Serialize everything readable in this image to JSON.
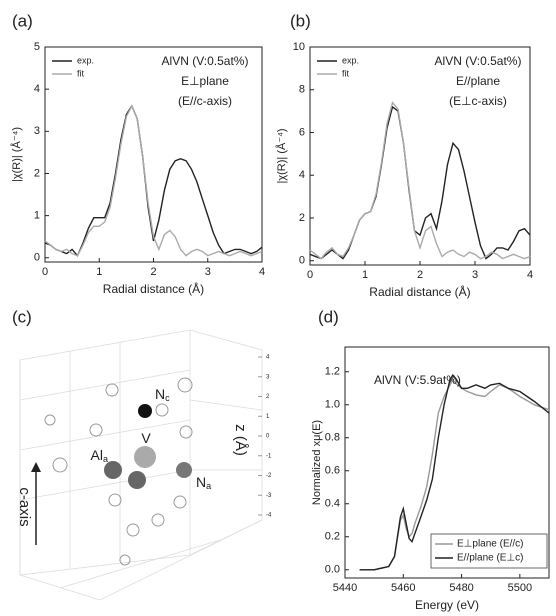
{
  "chart_data": [
    {
      "type": "line",
      "panel": "(a)",
      "xlabel": "Radial distance (Å)",
      "ylabel": "|χ(R)| (Å⁻⁴)",
      "xlim": [
        0,
        4
      ],
      "xticks": [
        0,
        1,
        2,
        3,
        4
      ],
      "ylim": [
        -0.1,
        5
      ],
      "yticks": [
        0,
        1,
        2,
        3,
        4,
        5
      ],
      "legend": "upper left",
      "annotations": [
        "AlVN (V:0.5at%)",
        "E⊥plane",
        "(E//c-axis)"
      ],
      "x": [
        0,
        0.1,
        0.2,
        0.3,
        0.4,
        0.5,
        0.6,
        0.7,
        0.8,
        0.9,
        1,
        1.1,
        1.2,
        1.3,
        1.4,
        1.5,
        1.6,
        1.7,
        1.8,
        1.9,
        2,
        2.1,
        2.2,
        2.3,
        2.4,
        2.5,
        2.6,
        2.7,
        2.8,
        2.9,
        3,
        3.1,
        3.2,
        3.3,
        3.4,
        3.5,
        3.6,
        3.7,
        3.8,
        3.9,
        4
      ],
      "series": [
        {
          "name": "exp.",
          "color": "#222222",
          "values": [
            0.35,
            0.3,
            0.2,
            0.15,
            0.1,
            0.2,
            0.05,
            0.35,
            0.7,
            0.95,
            0.95,
            0.95,
            1.3,
            2.0,
            2.8,
            3.4,
            3.6,
            3.3,
            2.4,
            1.2,
            0.4,
            0.9,
            1.6,
            2.1,
            2.3,
            2.35,
            2.3,
            2.1,
            1.8,
            1.4,
            1.0,
            0.6,
            0.3,
            0.1,
            0.15,
            0.2,
            0.2,
            0.15,
            0.1,
            0.15,
            0.25
          ]
        },
        {
          "name": "fit",
          "color": "#aaaaaa",
          "values": [
            0.4,
            0.3,
            0.2,
            0.15,
            0.2,
            0.1,
            0.05,
            0.3,
            0.6,
            0.75,
            0.75,
            0.85,
            1.2,
            1.9,
            2.7,
            3.35,
            3.6,
            3.3,
            2.4,
            1.3,
            0.5,
            0.2,
            0.55,
            0.65,
            0.5,
            0.2,
            0.05,
            0.15,
            0.2,
            0.15,
            0.05,
            0.1,
            0.15,
            0.1,
            0.05,
            0.1,
            0.15,
            0.1,
            0.05,
            0.1,
            0.15
          ]
        }
      ]
    },
    {
      "type": "line",
      "panel": "(b)",
      "xlabel": "Radial distance (Å)",
      "ylabel": "|χ(R)| (Å⁻⁴)",
      "xlim": [
        0,
        4
      ],
      "xticks": [
        0,
        1,
        2,
        3,
        4
      ],
      "ylim": [
        -0.2,
        10
      ],
      "yticks": [
        0,
        2,
        4,
        6,
        8,
        10
      ],
      "legend": "upper left",
      "annotations": [
        "AlVN (V:0.5at%)",
        "E//plane",
        "(E⊥c-axis)"
      ],
      "x": [
        0,
        0.1,
        0.2,
        0.3,
        0.4,
        0.5,
        0.6,
        0.7,
        0.8,
        0.9,
        1,
        1.1,
        1.2,
        1.3,
        1.4,
        1.5,
        1.6,
        1.7,
        1.8,
        1.9,
        2,
        2.1,
        2.2,
        2.3,
        2.4,
        2.5,
        2.6,
        2.7,
        2.8,
        2.9,
        3,
        3.1,
        3.2,
        3.3,
        3.4,
        3.5,
        3.6,
        3.7,
        3.8,
        3.9,
        4
      ],
      "series": [
        {
          "name": "exp.",
          "color": "#222222",
          "values": [
            0.3,
            0.2,
            0.1,
            0.3,
            0.5,
            0.3,
            0.1,
            0.5,
            1.2,
            1.9,
            2.2,
            2.3,
            3.0,
            4.5,
            6.2,
            7.2,
            7.0,
            5.5,
            3.3,
            1.4,
            1.2,
            2.0,
            2.2,
            1.5,
            2.8,
            4.5,
            5.5,
            5.2,
            4.2,
            3.0,
            1.8,
            0.7,
            0.1,
            0.3,
            0.6,
            0.6,
            0.5,
            0.9,
            1.4,
            1.5,
            1.2
          ]
        },
        {
          "name": "fit",
          "color": "#aaaaaa",
          "values": [
            0.5,
            0.3,
            0.1,
            0.4,
            0.6,
            0.3,
            0.2,
            0.6,
            1.2,
            1.9,
            2.2,
            2.3,
            3.1,
            4.6,
            6.4,
            7.4,
            7.1,
            5.5,
            3.4,
            1.4,
            0.6,
            1.4,
            1.6,
            0.8,
            0.2,
            0.4,
            0.5,
            0.3,
            0.2,
            0.4,
            0.3,
            0.1,
            0.2,
            0.4,
            0.3,
            0.1,
            0.2,
            0.3,
            0.2,
            0.1,
            0.2
          ]
        }
      ]
    },
    {
      "type": "atoms",
      "panel": "(c)",
      "zlabel": "z (Å)",
      "zlim": [
        -4,
        4
      ],
      "zticks": [
        4,
        3,
        2,
        1,
        0,
        -1,
        -2,
        -3,
        -4
      ],
      "axis_label": "c-axis",
      "atoms": [
        {
          "label": "N",
          "sub": "c"
        },
        {
          "label": "V"
        },
        {
          "label": "Al",
          "sub": "a"
        },
        {
          "label": "N",
          "sub": "a"
        }
      ]
    },
    {
      "type": "line",
      "panel": "(d)",
      "xlabel": "Energy (eV)",
      "ylabel": "Normalized xμ(E)",
      "xlim": [
        5440,
        5510
      ],
      "xticks": [
        5440,
        5460,
        5480,
        5500
      ],
      "ylim": [
        -0.05,
        1.35
      ],
      "yticks": [
        {
          "value": 0,
          "label": "0.0"
        },
        0.2,
        0.4,
        0.6,
        0.8,
        {
          "value": 1,
          "label": "1.0"
        },
        1.2
      ],
      "legend": "lower right",
      "annotations": [
        "AlVN (V:5.9at%)"
      ],
      "x": [
        5445,
        5450,
        5455,
        5457,
        5459,
        5460,
        5461,
        5462,
        5463,
        5464,
        5466,
        5468,
        5470,
        5472,
        5474,
        5476,
        5477,
        5478,
        5480,
        5482,
        5485,
        5488,
        5490,
        5493,
        5496,
        5500,
        5505,
        5510
      ],
      "series": [
        {
          "name": "E⊥plane (E//c)",
          "color": "#999999",
          "values": [
            0,
            0,
            0.02,
            0.08,
            0.3,
            0.33,
            0.25,
            0.2,
            0.22,
            0.28,
            0.38,
            0.5,
            0.7,
            0.95,
            1.05,
            1.12,
            1.15,
            1.13,
            1.1,
            1.08,
            1.06,
            1.05,
            1.08,
            1.12,
            1.1,
            1.05,
            1.0,
            0.97
          ]
        },
        {
          "name": "E//plane (E⊥c)",
          "color": "#222222",
          "values": [
            0,
            0,
            0.02,
            0.08,
            0.32,
            0.37,
            0.28,
            0.19,
            0.17,
            0.22,
            0.32,
            0.42,
            0.55,
            0.8,
            1.0,
            1.15,
            1.18,
            1.16,
            1.1,
            1.1,
            1.12,
            1.1,
            1.12,
            1.13,
            1.1,
            1.08,
            1.02,
            0.95
          ]
        }
      ]
    }
  ]
}
